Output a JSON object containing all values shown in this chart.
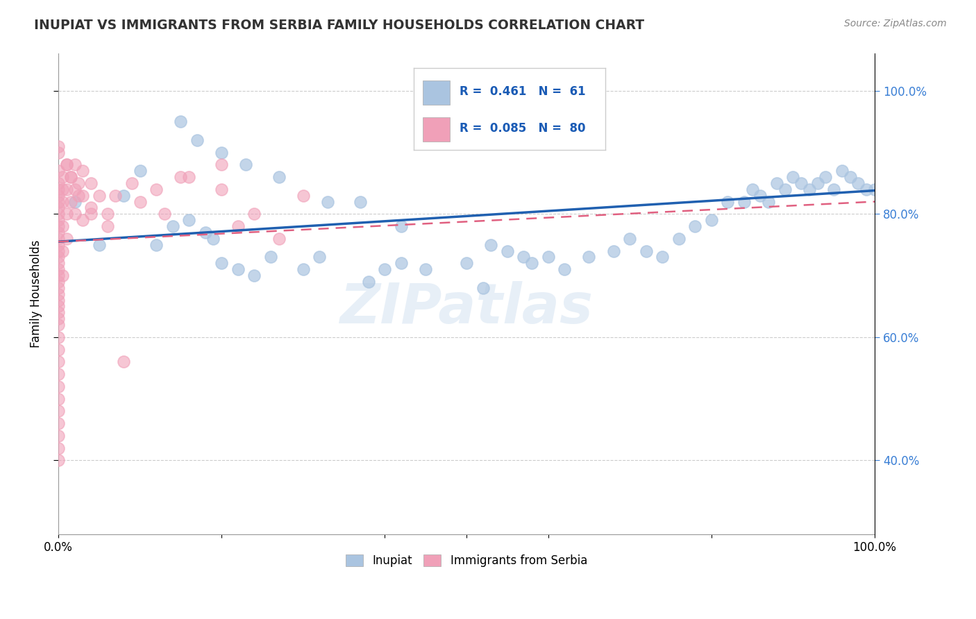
{
  "title": "INUPIAT VS IMMIGRANTS FROM SERBIA FAMILY HOUSEHOLDS CORRELATION CHART",
  "source_text": "Source: ZipAtlas.com",
  "ylabel": "Family Households",
  "xlim": [
    0.0,
    1.0
  ],
  "ylim": [
    0.28,
    1.06
  ],
  "yticks": [
    0.4,
    0.6,
    0.8,
    1.0
  ],
  "ytick_labels": [
    "40.0%",
    "60.0%",
    "80.0%",
    "100.0%"
  ],
  "xticks": [
    0.0,
    0.2,
    0.4,
    0.6,
    0.8,
    1.0
  ],
  "xtick_labels": [
    "0.0%",
    "",
    "",
    "",
    "",
    "100.0%"
  ],
  "inupiat_color": "#aac4e0",
  "serbia_color": "#f0a0b8",
  "trend_inupiat_color": "#2060b0",
  "trend_serbia_color": "#e06080",
  "legend_R_inupiat": "0.461",
  "legend_N_inupiat": "61",
  "legend_R_serbia": "0.085",
  "legend_N_serbia": "80",
  "watermark": "ZIPatlas",
  "inupiat_x": [
    0.02,
    0.05,
    0.08,
    0.1,
    0.12,
    0.14,
    0.16,
    0.18,
    0.19,
    0.2,
    0.22,
    0.24,
    0.26,
    0.3,
    0.32,
    0.38,
    0.4,
    0.42,
    0.45,
    0.5,
    0.52,
    0.55,
    0.58,
    0.6,
    0.62,
    0.65,
    0.68,
    0.7,
    0.72,
    0.74,
    0.76,
    0.78,
    0.8,
    0.82,
    0.84,
    0.85,
    0.86,
    0.87,
    0.88,
    0.89,
    0.9,
    0.91,
    0.92,
    0.93,
    0.94,
    0.95,
    0.96,
    0.97,
    0.98,
    0.99,
    1.0,
    0.15,
    0.17,
    0.2,
    0.23,
    0.27,
    0.33,
    0.37,
    0.42,
    0.53,
    0.57
  ],
  "inupiat_y": [
    0.82,
    0.75,
    0.83,
    0.87,
    0.75,
    0.78,
    0.79,
    0.77,
    0.76,
    0.72,
    0.71,
    0.7,
    0.73,
    0.71,
    0.73,
    0.69,
    0.71,
    0.72,
    0.71,
    0.72,
    0.68,
    0.74,
    0.72,
    0.73,
    0.71,
    0.73,
    0.74,
    0.76,
    0.74,
    0.73,
    0.76,
    0.78,
    0.79,
    0.82,
    0.82,
    0.84,
    0.83,
    0.82,
    0.85,
    0.84,
    0.86,
    0.85,
    0.84,
    0.85,
    0.86,
    0.84,
    0.87,
    0.86,
    0.85,
    0.84,
    0.84,
    0.95,
    0.92,
    0.9,
    0.88,
    0.86,
    0.82,
    0.82,
    0.78,
    0.75,
    0.73
  ],
  "serbia_x": [
    0.0,
    0.0,
    0.0,
    0.0,
    0.0,
    0.0,
    0.0,
    0.0,
    0.0,
    0.0,
    0.0,
    0.0,
    0.0,
    0.0,
    0.0,
    0.0,
    0.0,
    0.0,
    0.0,
    0.0,
    0.0,
    0.0,
    0.0,
    0.0,
    0.0,
    0.0,
    0.0,
    0.0,
    0.0,
    0.0,
    0.0,
    0.0,
    0.0,
    0.0,
    0.0,
    0.005,
    0.005,
    0.005,
    0.005,
    0.005,
    0.01,
    0.01,
    0.01,
    0.01,
    0.015,
    0.015,
    0.02,
    0.02,
    0.02,
    0.025,
    0.03,
    0.03,
    0.03,
    0.04,
    0.04,
    0.05,
    0.06,
    0.07,
    0.08,
    0.1,
    0.13,
    0.16,
    0.2,
    0.22,
    0.24,
    0.27,
    0.3,
    0.2,
    0.15,
    0.12,
    0.09,
    0.06,
    0.04,
    0.025,
    0.015,
    0.01,
    0.005,
    0.0,
    0.0,
    0.0
  ],
  "serbia_y": [
    0.85,
    0.84,
    0.83,
    0.82,
    0.81,
    0.8,
    0.79,
    0.78,
    0.77,
    0.76,
    0.75,
    0.74,
    0.73,
    0.72,
    0.71,
    0.7,
    0.69,
    0.68,
    0.67,
    0.66,
    0.65,
    0.64,
    0.63,
    0.62,
    0.6,
    0.58,
    0.56,
    0.54,
    0.52,
    0.5,
    0.48,
    0.46,
    0.44,
    0.42,
    0.4,
    0.86,
    0.82,
    0.78,
    0.74,
    0.7,
    0.88,
    0.84,
    0.8,
    0.76,
    0.86,
    0.82,
    0.88,
    0.84,
    0.8,
    0.85,
    0.87,
    0.83,
    0.79,
    0.85,
    0.81,
    0.83,
    0.8,
    0.83,
    0.56,
    0.82,
    0.8,
    0.86,
    0.84,
    0.78,
    0.8,
    0.76,
    0.83,
    0.88,
    0.86,
    0.84,
    0.85,
    0.78,
    0.8,
    0.83,
    0.86,
    0.88,
    0.84,
    0.87,
    0.9,
    0.91
  ]
}
